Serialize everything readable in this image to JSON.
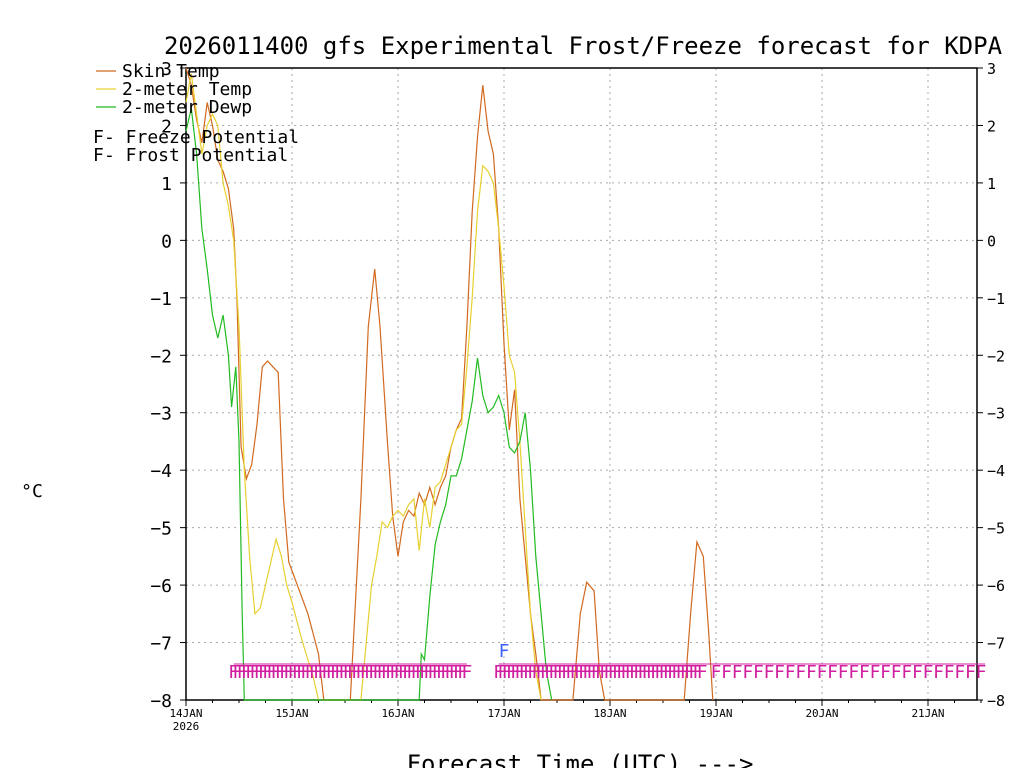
{
  "chart_data": {
    "type": "line",
    "title": "2026011400 gfs Experimental Frost/Freeze forecast for KDPA",
    "ylabel": "°C",
    "xlabel": "Forecast Time (UTC) --->",
    "ylim": [
      -8,
      3
    ],
    "xlim": [
      0,
      7.6
    ],
    "x_unit": "days since 14JAN 2026 00Z",
    "y_ticks": [
      "3",
      "2",
      "1",
      "0",
      "−1",
      "−2",
      "−3",
      "−4",
      "−5",
      "−6",
      "−7",
      "−8"
    ],
    "x_ticks": [
      {
        "label": "14JAN",
        "sub": "2026",
        "day": 0
      },
      {
        "label": "15JAN",
        "sub": "",
        "day": 1
      },
      {
        "label": "16JAN",
        "sub": "",
        "day": 2
      },
      {
        "label": "17JAN",
        "sub": "",
        "day": 3
      },
      {
        "label": "18JAN",
        "sub": "",
        "day": 4
      },
      {
        "label": "19JAN",
        "sub": "",
        "day": 5
      },
      {
        "label": "20JAN",
        "sub": "",
        "day": 6
      },
      {
        "label": "21JAN",
        "sub": "",
        "day": 7
      }
    ],
    "grid": true,
    "series": [
      {
        "name": "Skin Temp",
        "color": "#d2691e",
        "points": [
          [
            0,
            3.0
          ],
          [
            0.05,
            2.7
          ],
          [
            0.1,
            2.1
          ],
          [
            0.15,
            1.7
          ],
          [
            0.2,
            2.4
          ],
          [
            0.25,
            2.0
          ],
          [
            0.3,
            1.4
          ],
          [
            0.35,
            1.2
          ],
          [
            0.4,
            0.9
          ],
          [
            0.45,
            0.2
          ],
          [
            0.48,
            -1.0
          ],
          [
            0.52,
            -3.6
          ],
          [
            0.57,
            -4.15
          ],
          [
            0.62,
            -3.9
          ],
          [
            0.67,
            -3.2
          ],
          [
            0.72,
            -2.2
          ],
          [
            0.77,
            -2.1
          ],
          [
            0.82,
            -2.2
          ],
          [
            0.87,
            -2.3
          ],
          [
            0.92,
            -4.5
          ],
          [
            0.97,
            -5.6
          ],
          [
            1.05,
            -6.0
          ],
          [
            1.15,
            -6.5
          ],
          [
            1.25,
            -7.2
          ],
          [
            1.3,
            -8.0
          ],
          [
            1.55,
            -8.0
          ],
          [
            1.65,
            -4.5
          ],
          [
            1.72,
            -1.5
          ],
          [
            1.78,
            -0.5
          ],
          [
            1.83,
            -1.5
          ],
          [
            1.9,
            -3.5
          ],
          [
            1.95,
            -4.8
          ],
          [
            2.0,
            -5.5
          ],
          [
            2.05,
            -4.9
          ],
          [
            2.1,
            -4.7
          ],
          [
            2.15,
            -4.8
          ],
          [
            2.2,
            -4.4
          ],
          [
            2.25,
            -4.6
          ],
          [
            2.3,
            -4.3
          ],
          [
            2.35,
            -4.6
          ],
          [
            2.4,
            -4.3
          ],
          [
            2.45,
            -4.1
          ],
          [
            2.5,
            -3.6
          ],
          [
            2.55,
            -3.3
          ],
          [
            2.6,
            -3.1
          ],
          [
            2.65,
            -1.5
          ],
          [
            2.7,
            0.5
          ],
          [
            2.75,
            1.8
          ],
          [
            2.8,
            2.7
          ],
          [
            2.85,
            1.9
          ],
          [
            2.9,
            1.5
          ],
          [
            2.95,
            0.2
          ],
          [
            3.0,
            -1.8
          ],
          [
            3.05,
            -3.3
          ],
          [
            3.1,
            -2.6
          ],
          [
            3.15,
            -4.5
          ],
          [
            3.2,
            -5.5
          ],
          [
            3.25,
            -6.5
          ],
          [
            3.3,
            -7.2
          ],
          [
            3.35,
            -8.0
          ],
          [
            3.65,
            -8.0
          ],
          [
            3.72,
            -6.5
          ],
          [
            3.78,
            -5.95
          ],
          [
            3.85,
            -6.1
          ],
          [
            3.9,
            -7.5
          ],
          [
            3.95,
            -8.0
          ],
          [
            4.7,
            -8.0
          ],
          [
            4.76,
            -6.5
          ],
          [
            4.82,
            -5.25
          ],
          [
            4.88,
            -5.5
          ],
          [
            4.93,
            -6.8
          ],
          [
            4.97,
            -8.0
          ]
        ]
      },
      {
        "name": "2-meter Temp",
        "color": "#e8d030",
        "points": [
          [
            0,
            2.4
          ],
          [
            0.05,
            2.9
          ],
          [
            0.1,
            2.2
          ],
          [
            0.15,
            1.5
          ],
          [
            0.2,
            2.0
          ],
          [
            0.25,
            2.2
          ],
          [
            0.3,
            2.0
          ],
          [
            0.35,
            1.0
          ],
          [
            0.4,
            0.6
          ],
          [
            0.45,
            0.0
          ],
          [
            0.5,
            -1.5
          ],
          [
            0.55,
            -4.0
          ],
          [
            0.6,
            -5.5
          ],
          [
            0.65,
            -6.5
          ],
          [
            0.7,
            -6.4
          ],
          [
            0.75,
            -6.0
          ],
          [
            0.8,
            -5.6
          ],
          [
            0.85,
            -5.2
          ],
          [
            0.9,
            -5.5
          ],
          [
            0.95,
            -6.0
          ],
          [
            1.0,
            -6.3
          ],
          [
            1.1,
            -7.0
          ],
          [
            1.2,
            -7.6
          ],
          [
            1.25,
            -8.0
          ],
          [
            1.65,
            -8.0
          ],
          [
            1.7,
            -7.0
          ],
          [
            1.75,
            -6.0
          ],
          [
            1.8,
            -5.5
          ],
          [
            1.85,
            -4.9
          ],
          [
            1.9,
            -5.0
          ],
          [
            1.95,
            -4.8
          ],
          [
            2.0,
            -4.7
          ],
          [
            2.05,
            -4.8
          ],
          [
            2.1,
            -4.6
          ],
          [
            2.15,
            -4.5
          ],
          [
            2.2,
            -5.4
          ],
          [
            2.25,
            -4.5
          ],
          [
            2.3,
            -5.0
          ],
          [
            2.35,
            -4.3
          ],
          [
            2.4,
            -4.2
          ],
          [
            2.45,
            -3.9
          ],
          [
            2.5,
            -3.6
          ],
          [
            2.55,
            -3.3
          ],
          [
            2.6,
            -3.2
          ],
          [
            2.65,
            -2.2
          ],
          [
            2.7,
            -1.0
          ],
          [
            2.75,
            0.5
          ],
          [
            2.8,
            1.3
          ],
          [
            2.85,
            1.2
          ],
          [
            2.9,
            1.0
          ],
          [
            2.95,
            0.2
          ],
          [
            3.0,
            -0.8
          ],
          [
            3.05,
            -2.0
          ],
          [
            3.1,
            -2.3
          ],
          [
            3.15,
            -3.5
          ],
          [
            3.2,
            -5.0
          ],
          [
            3.25,
            -6.5
          ],
          [
            3.3,
            -7.5
          ],
          [
            3.35,
            -8.0
          ]
        ]
      },
      {
        "name": "2-meter Dewp",
        "color": "#22bb22",
        "points": [
          [
            0,
            1.9
          ],
          [
            0.05,
            2.3
          ],
          [
            0.1,
            1.5
          ],
          [
            0.15,
            0.2
          ],
          [
            0.2,
            -0.5
          ],
          [
            0.25,
            -1.3
          ],
          [
            0.3,
            -1.7
          ],
          [
            0.35,
            -1.3
          ],
          [
            0.4,
            -2.0
          ],
          [
            0.43,
            -2.9
          ],
          [
            0.47,
            -2.2
          ],
          [
            0.5,
            -3.5
          ],
          [
            0.53,
            -6.5
          ],
          [
            0.55,
            -8.0
          ],
          [
            2.2,
            -8.0
          ],
          [
            2.22,
            -7.2
          ],
          [
            2.25,
            -7.3
          ],
          [
            2.3,
            -6.2
          ],
          [
            2.35,
            -5.3
          ],
          [
            2.4,
            -4.9
          ],
          [
            2.45,
            -4.6
          ],
          [
            2.5,
            -4.1
          ],
          [
            2.55,
            -4.1
          ],
          [
            2.6,
            -3.8
          ],
          [
            2.65,
            -3.3
          ],
          [
            2.7,
            -2.8
          ],
          [
            2.75,
            -2.05
          ],
          [
            2.8,
            -2.7
          ],
          [
            2.85,
            -3.0
          ],
          [
            2.9,
            -2.9
          ],
          [
            2.95,
            -2.7
          ],
          [
            3.0,
            -3.0
          ],
          [
            3.05,
            -3.6
          ],
          [
            3.1,
            -3.7
          ],
          [
            3.15,
            -3.5
          ],
          [
            3.2,
            -3.0
          ],
          [
            3.25,
            -4.0
          ],
          [
            3.3,
            -5.5
          ],
          [
            3.35,
            -6.5
          ],
          [
            3.4,
            -7.5
          ],
          [
            3.45,
            -8.0
          ]
        ]
      }
    ],
    "frost_marks": [
      3.0
    ],
    "freeze_marks_dense": [
      [
        0.45,
        2.65
      ],
      [
        2.95,
        4.9
      ]
    ],
    "freeze_marks_sparse": [
      5.0,
      5.1,
      5.2,
      5.3,
      5.4,
      5.5,
      5.6,
      5.7,
      5.8,
      5.9,
      6.0,
      6.1,
      6.2,
      6.3,
      6.4,
      6.5,
      6.6,
      6.7,
      6.8,
      6.9,
      7.0,
      7.1,
      7.2,
      7.3,
      7.4,
      7.5
    ]
  },
  "legend": {
    "items": [
      {
        "label": "Skin Temp",
        "color": "#d2691e"
      },
      {
        "label": "2-meter Temp",
        "color": "#e8d030"
      },
      {
        "label": "2-meter Dewp",
        "color": "#22bb22"
      }
    ],
    "freeze_symbol": "F",
    "freeze_label": " - Freeze Potential",
    "freeze_color": "#d020a0",
    "frost_symbol": "F",
    "frost_label": " - Frost Potential",
    "frost_color": "#4060ff"
  }
}
